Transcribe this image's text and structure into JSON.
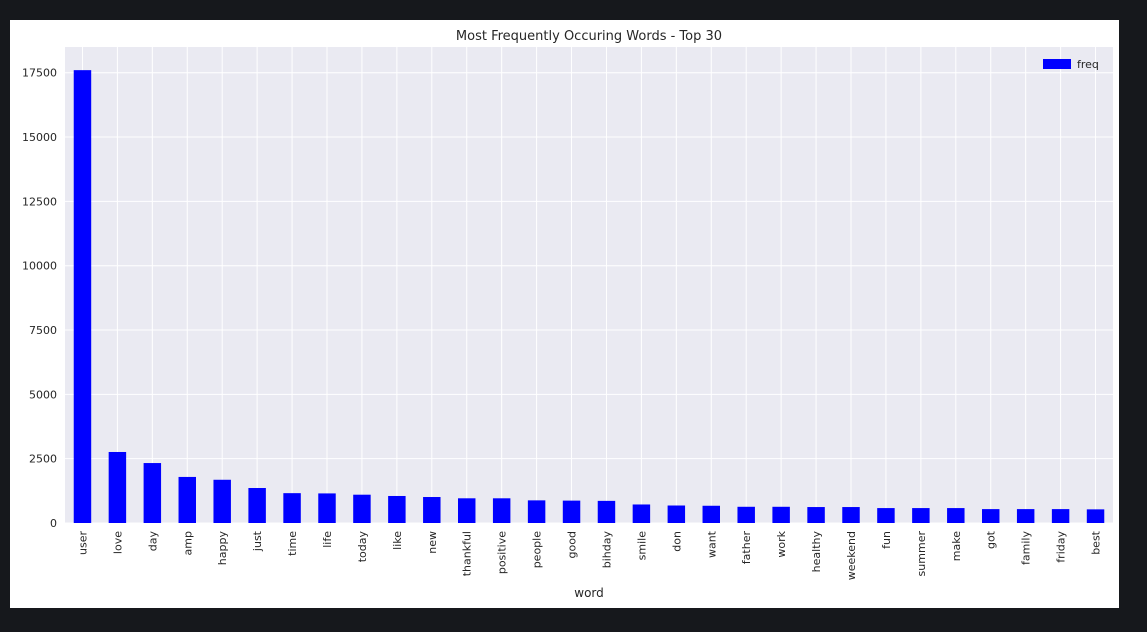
{
  "chart_data": {
    "type": "bar",
    "title": "Most Frequently Occuring Words - Top 30",
    "xlabel": "word",
    "ylabel": "",
    "ylim": [
      0,
      18500
    ],
    "yticks": [
      0,
      2500,
      5000,
      7500,
      10000,
      12500,
      15000,
      17500
    ],
    "categories": [
      "user",
      "love",
      "day",
      "amp",
      "happy",
      "just",
      "time",
      "life",
      "today",
      "like",
      "new",
      "thankful",
      "positive",
      "people",
      "good",
      "bihday",
      "smile",
      "don",
      "want",
      "father",
      "work",
      "healthy",
      "weekend",
      "fun",
      "summer",
      "make",
      "got",
      "family",
      "friday",
      "best"
    ],
    "series": [
      {
        "name": "freq",
        "color": "#0000ff",
        "values": [
          17600,
          2760,
          2330,
          1790,
          1680,
          1360,
          1160,
          1150,
          1100,
          1050,
          1010,
          960,
          960,
          880,
          870,
          860,
          720,
          680,
          670,
          630,
          630,
          620,
          620,
          580,
          580,
          580,
          540,
          540,
          540,
          530
        ]
      }
    ],
    "legend": "top-right",
    "grid": true,
    "background_color": "#eaeaf2",
    "grid_color": "#ffffff"
  }
}
